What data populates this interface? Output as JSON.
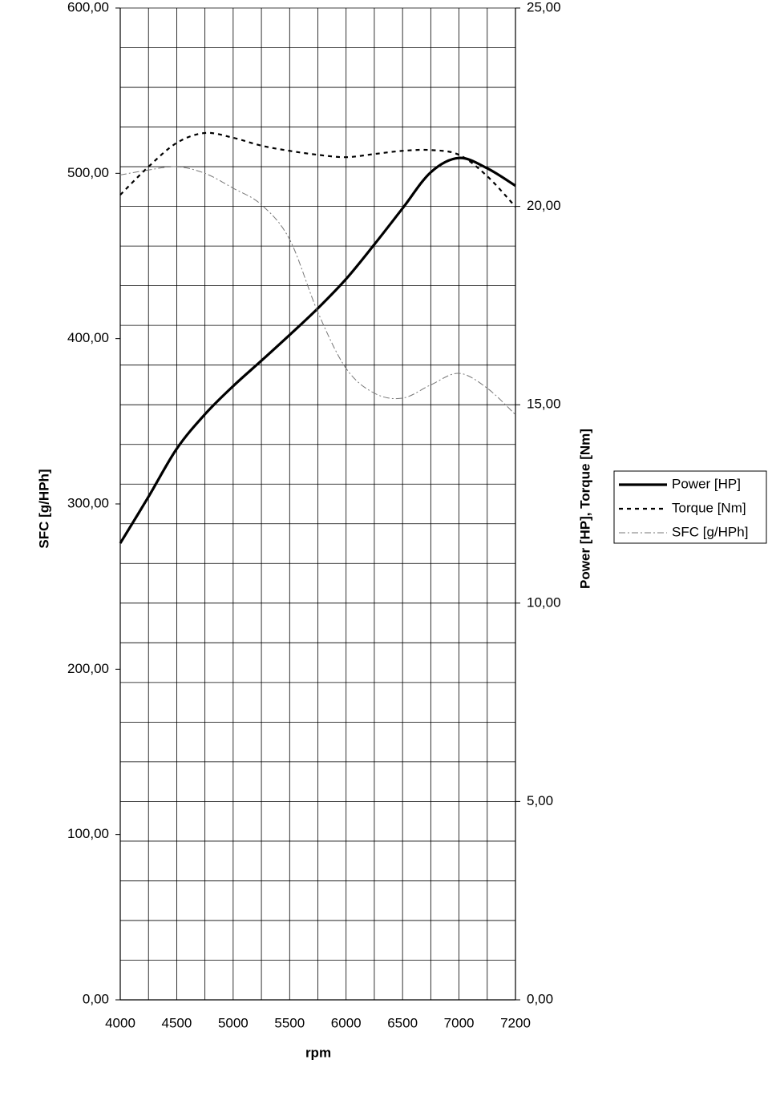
{
  "chart_data": {
    "type": "line",
    "x_label": "rpm",
    "y_label": "SFC [g/HPh]",
    "y2_label": "Power [HP], Torque [Nm]",
    "categories": [
      "4000",
      null,
      "4500",
      null,
      "5000",
      null,
      "5500",
      null,
      "6000",
      null,
      "6500",
      null,
      "7000",
      null,
      "7200"
    ],
    "series": [
      {
        "name": "Power [HP]",
        "color": "#000000",
        "axis": "y2",
        "style": "solid",
        "values": [
          11.51,
          12.68,
          13.89,
          14.76,
          15.47,
          16.11,
          16.76,
          17.43,
          18.17,
          19.04,
          19.95,
          20.86,
          21.22,
          20.96,
          20.52
        ]
      },
      {
        "name": "Torque [Nm]",
        "color": "#000000",
        "axis": "y2",
        "style": "dashed",
        "values": [
          20.29,
          21.0,
          21.6,
          21.85,
          21.73,
          21.53,
          21.4,
          21.3,
          21.24,
          21.32,
          21.4,
          21.42,
          21.3,
          20.76,
          19.99
        ]
      },
      {
        "name": "SFC [g/HPh]",
        "color": "#777777",
        "style": "dashdot",
        "values": [
          499,
          502,
          504,
          500,
          491,
          481,
          460,
          416,
          382,
          367,
          364,
          372,
          379,
          370,
          354
        ]
      }
    ],
    "ylim": [
      0,
      600
    ],
    "yticks": [
      {
        "value": 0,
        "label": "0,00"
      },
      {
        "value": 100,
        "label": "100,00"
      },
      {
        "value": 200,
        "label": "200,00"
      },
      {
        "value": 300,
        "label": "300,00"
      },
      {
        "value": 400,
        "label": "400,00"
      },
      {
        "value": 500,
        "label": "500,00"
      },
      {
        "value": 600,
        "label": "600,00"
      }
    ],
    "y2lim": [
      0,
      25
    ],
    "y2ticks": [
      {
        "value": 0,
        "label": "0,00"
      },
      {
        "value": 5,
        "label": "5,00"
      },
      {
        "value": 10,
        "label": "10,00"
      },
      {
        "value": 15,
        "label": "15,00"
      },
      {
        "value": 20,
        "label": "20,00"
      },
      {
        "value": 25,
        "label": "25,00"
      }
    ],
    "grid": true,
    "legend": "right"
  }
}
